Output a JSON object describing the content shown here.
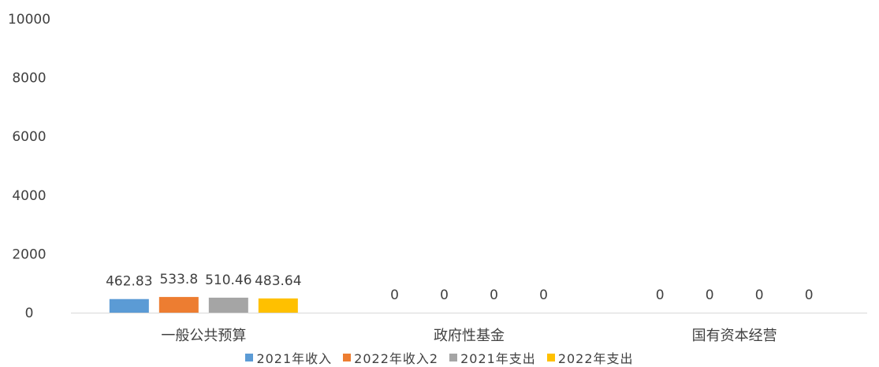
{
  "chart_data": {
    "type": "bar",
    "title": "",
    "xlabel": "",
    "ylabel": "",
    "ylim": [
      0,
      10000
    ],
    "yticks": [
      "0",
      "2000",
      "4000",
      "6000",
      "8000",
      "10000"
    ],
    "categories": [
      "一般公共预算",
      "政府性基金",
      "国有资本经营"
    ],
    "series": [
      {
        "name": "2021年收入",
        "color": "#5B9BD5",
        "values": [
          462.83,
          0,
          0
        ],
        "labels": [
          "462.83",
          "0",
          "0"
        ]
      },
      {
        "name": "2022年收入2",
        "color": "#ED7D31",
        "values": [
          533.8,
          0,
          0
        ],
        "labels": [
          "533.8",
          "0",
          "0"
        ]
      },
      {
        "name": "2021年支出",
        "color": "#A5A5A5",
        "values": [
          510.46,
          0,
          0
        ],
        "labels": [
          "510.46",
          "0",
          "0"
        ]
      },
      {
        "name": "2022年支出",
        "color": "#FFC000",
        "values": [
          483.64,
          0,
          0
        ],
        "labels": [
          "483.64",
          "0",
          "0"
        ]
      }
    ],
    "grid": false,
    "legend_position": "bottom"
  }
}
